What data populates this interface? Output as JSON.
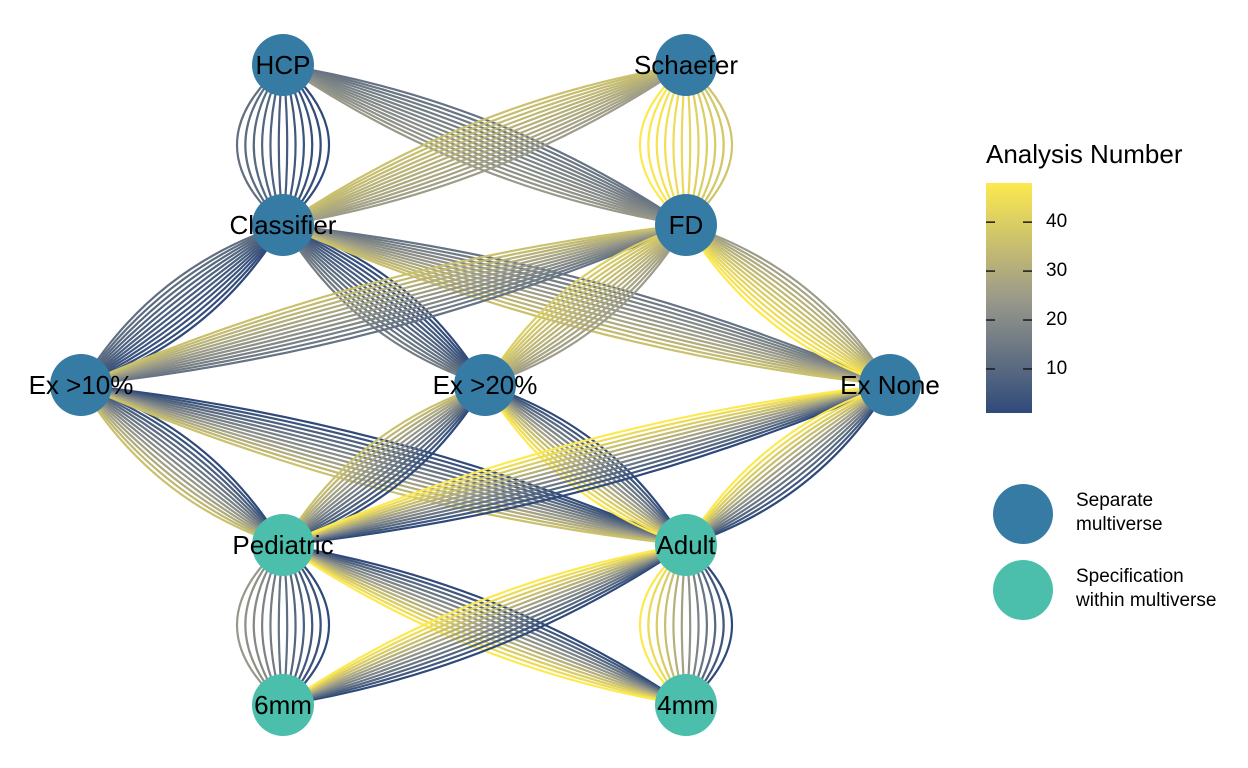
{
  "nodes": [
    {
      "id": "HCP",
      "label": "HCP",
      "type": "separate"
    },
    {
      "id": "Schaefer",
      "label": "Schaefer",
      "type": "separate"
    },
    {
      "id": "Classifier",
      "label": "Classifier",
      "type": "separate"
    },
    {
      "id": "FD",
      "label": "FD",
      "type": "separate"
    },
    {
      "id": "Ex10",
      "label": "Ex >10%",
      "type": "separate"
    },
    {
      "id": "Ex20",
      "label": "Ex >20%",
      "type": "separate"
    },
    {
      "id": "ExNone",
      "label": "Ex None",
      "type": "separate"
    },
    {
      "id": "Pediatric",
      "label": "Pediatric",
      "type": "specification"
    },
    {
      "id": "Adult",
      "label": "Adult",
      "type": "specification"
    },
    {
      "id": "6mm",
      "label": "6mm",
      "type": "specification"
    },
    {
      "id": "4mm",
      "label": "4mm",
      "type": "specification"
    }
  ],
  "edge_groups": [
    {
      "from": "HCP",
      "to": "Classifier",
      "range": [
        1,
        12
      ]
    },
    {
      "from": "HCP",
      "to": "FD",
      "range": [
        13,
        24
      ]
    },
    {
      "from": "Schaefer",
      "to": "Classifier",
      "range": [
        25,
        36
      ]
    },
    {
      "from": "Schaefer",
      "to": "FD",
      "range": [
        37,
        48
      ]
    },
    {
      "from": "Classifier",
      "to": "Ex10",
      "range": [
        1,
        12
      ]
    },
    {
      "from": "Classifier",
      "to": "Ex20",
      "range": [
        1,
        16
      ]
    },
    {
      "from": "Classifier",
      "to": "ExNone",
      "range": [
        13,
        36
      ]
    },
    {
      "from": "FD",
      "to": "Ex10",
      "range": [
        13,
        36
      ]
    },
    {
      "from": "FD",
      "to": "Ex20",
      "range": [
        25,
        40
      ]
    },
    {
      "from": "FD",
      "to": "ExNone",
      "range": [
        25,
        48
      ]
    },
    {
      "from": "Ex10",
      "to": "Pediatric",
      "range": [
        1,
        36
      ]
    },
    {
      "from": "Ex10",
      "to": "Adult",
      "range": [
        1,
        36
      ]
    },
    {
      "from": "Ex20",
      "to": "Pediatric",
      "range": [
        1,
        36
      ]
    },
    {
      "from": "Ex20",
      "to": "Adult",
      "range": [
        1,
        48
      ]
    },
    {
      "from": "ExNone",
      "to": "Pediatric",
      "range": [
        1,
        48
      ]
    },
    {
      "from": "ExNone",
      "to": "Adult",
      "range": [
        1,
        48
      ]
    },
    {
      "from": "Pediatric",
      "to": "6mm",
      "range": [
        1,
        24
      ]
    },
    {
      "from": "Pediatric",
      "to": "4mm",
      "range": [
        1,
        48
      ]
    },
    {
      "from": "Adult",
      "to": "6mm",
      "range": [
        1,
        48
      ]
    },
    {
      "from": "Adult",
      "to": "4mm",
      "range": [
        1,
        48
      ]
    }
  ],
  "legend": {
    "colorbar_title": "Analysis Number",
    "colorbar_ticks": [
      "10",
      "20",
      "30",
      "40"
    ],
    "colorbar_min": 1,
    "colorbar_max": 48,
    "colorbar_low_color": "#2f4a7a",
    "colorbar_mid_color": "#9a9a8a",
    "colorbar_high_color": "#fde94f",
    "node_types": [
      {
        "key": "separate",
        "label": "Separate\nmultiverse",
        "color": "#367ba3"
      },
      {
        "key": "specification",
        "label": "Specification\nwithin multiverse",
        "color": "#4bbfab"
      }
    ]
  }
}
